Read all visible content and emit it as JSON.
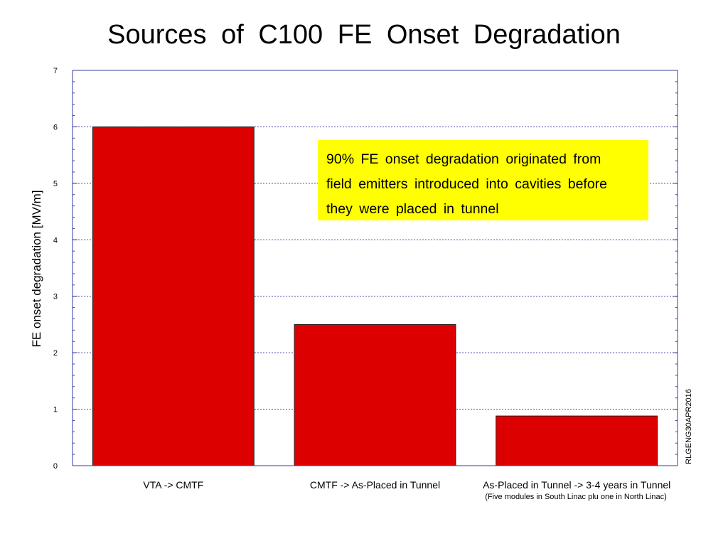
{
  "chart_data": {
    "type": "bar",
    "title": "Sources of C100 FE Onset Degradation",
    "ylabel": "FE onset degradation [MV/m]",
    "xlabel": "",
    "ylim": [
      0,
      7
    ],
    "yticks": [
      "0",
      "1",
      "2",
      "3",
      "4",
      "5",
      "6",
      "7"
    ],
    "categories": [
      "VTA -> CMTF",
      "CMTF -> As-Placed in Tunnel",
      "As-Placed in Tunnel -> 3-4 years in Tunnel"
    ],
    "values": [
      6.0,
      2.5,
      0.88
    ],
    "grid": true,
    "bar_color": "#dd0000",
    "annotation_lines": [
      "90% FE onset degradation originated from",
      "field emitters introduced into cavities before",
      "they were placed in tunnel"
    ],
    "annotation_color": "#ffff00",
    "footnote": "(Five modules in South Linac  plu one in North Linac)",
    "stamp": "RLGENG30APR2016"
  }
}
